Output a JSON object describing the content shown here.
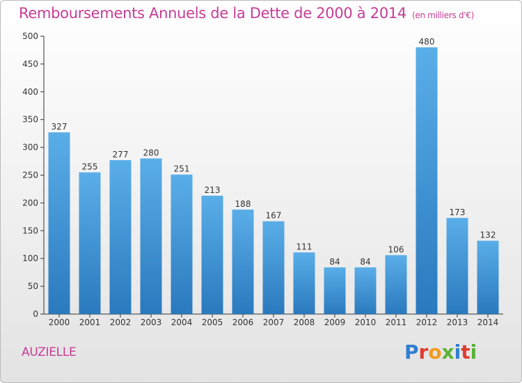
{
  "header": {
    "title": "Remboursements Annuels de la Dette de 2000 à 2014",
    "unit": "(en milliers d'€)"
  },
  "footer": {
    "commune": "AUZIELLE",
    "logo_text": "Proxiti"
  },
  "colors": {
    "accent": "#c63c95",
    "bar_top": "#5aaee8",
    "bar_bottom": "#2a79be"
  },
  "chart_data": {
    "type": "bar",
    "title": "Remboursements Annuels de la Dette de 2000 à 2014",
    "subtitle": "(en milliers d'€)",
    "xlabel": "",
    "ylabel": "",
    "categories": [
      "2000",
      "2001",
      "2002",
      "2003",
      "2004",
      "2005",
      "2006",
      "2007",
      "2008",
      "2009",
      "2010",
      "2011",
      "2012",
      "2013",
      "2014"
    ],
    "values": [
      327,
      255,
      277,
      280,
      251,
      213,
      188,
      167,
      111,
      84,
      84,
      106,
      480,
      173,
      132
    ],
    "ylim": [
      0,
      500
    ],
    "yticks": [
      0,
      50,
      100,
      150,
      200,
      250,
      300,
      350,
      400,
      450,
      500
    ],
    "grid": false,
    "data_labels": true
  }
}
